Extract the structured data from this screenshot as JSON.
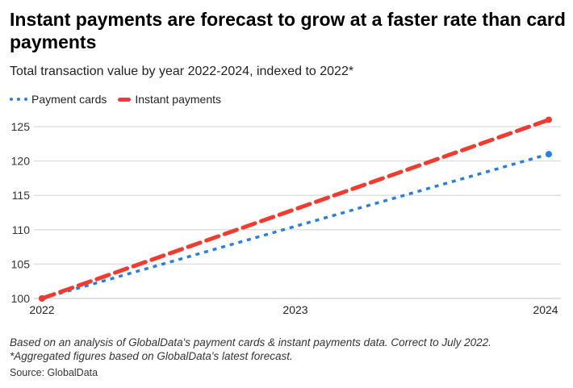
{
  "title": "Instant payments are forecast to grow at a faster rate than card payments",
  "subtitle": "Total transaction value by year 2022-2024, indexed to 2022*",
  "notes": [
    "Based on an analysis of GlobalData's payment cards & instant payments data. Correct to July 2022.",
    "*Aggregated figures based on GlobalData's latest forecast."
  ],
  "source": "Source: GlobalData",
  "chart_data": {
    "type": "line",
    "x": [
      "2022",
      "2023",
      "2024"
    ],
    "ylim": [
      100,
      127
    ],
    "yticks": [
      100,
      105,
      110,
      115,
      120,
      125
    ],
    "grid": true,
    "legend_placement": "top-left",
    "series": [
      {
        "name": "Payment cards",
        "values": [
          100,
          110.5,
          121
        ],
        "color": "#2a7fdc",
        "style": "dotted"
      },
      {
        "name": "Instant payments",
        "values": [
          100,
          113,
          126
        ],
        "color": "#f03c30",
        "style": "dashed"
      }
    ]
  }
}
